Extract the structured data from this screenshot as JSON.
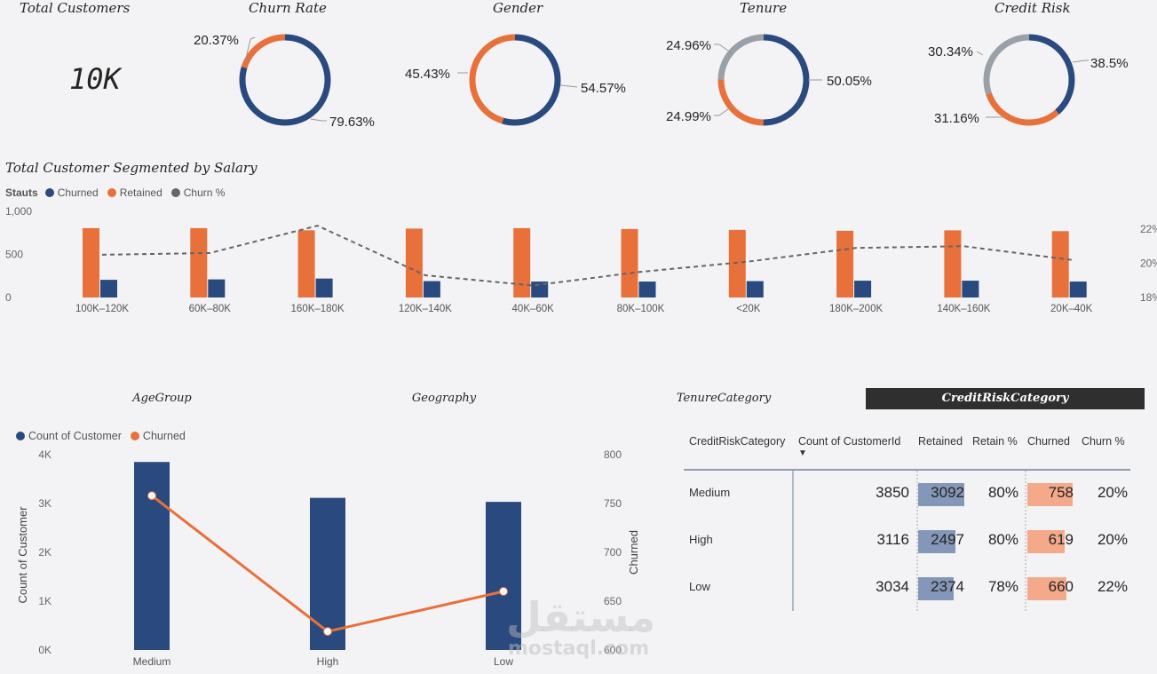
{
  "kpi": {
    "title": "Total Customers",
    "value": "10K"
  },
  "donuts": [
    {
      "title": "Churn Rate",
      "slices": [
        {
          "label": "79.63%",
          "value": 79.63,
          "color": "#2a4a7f"
        },
        {
          "label": "20.37%",
          "value": 20.37,
          "color": "#e8703a"
        }
      ]
    },
    {
      "title": "Gender",
      "slices": [
        {
          "label": "54.57%",
          "value": 54.57,
          "color": "#2a4a7f"
        },
        {
          "label": "45.43%",
          "value": 45.43,
          "color": "#e8703a"
        }
      ]
    },
    {
      "title": "Tenure",
      "slices": [
        {
          "label": "50.05%",
          "value": 50.05,
          "color": "#2a4a7f"
        },
        {
          "label": "24.99%",
          "value": 24.99,
          "color": "#e8703a"
        },
        {
          "label": "24.96%",
          "value": 24.96,
          "color": "#9aa0a8"
        }
      ]
    },
    {
      "title": "Credit Risk",
      "slices": [
        {
          "label": "38.5%",
          "value": 38.5,
          "color": "#2a4a7f"
        },
        {
          "label": "31.16%",
          "value": 31.16,
          "color": "#e8703a"
        },
        {
          "label": "30.34%",
          "value": 30.34,
          "color": "#9aa0a8"
        }
      ]
    }
  ],
  "salary_chart": {
    "title": "Total Customer Segmented by  Salary",
    "legend_title": "Stauts",
    "legend": [
      {
        "label": "Churned",
        "color": "#2a4a7f"
      },
      {
        "label": "Retained",
        "color": "#e8703a"
      },
      {
        "label": "Churn %",
        "color": "#666666"
      }
    ]
  },
  "age_chart": {
    "legend": [
      {
        "label": "Count of Customer",
        "color": "#2a4a7f"
      },
      {
        "label": "Churned",
        "color": "#e8703a"
      }
    ],
    "ylabel_left": "Count of Customer",
    "ylabel_right": "Churned"
  },
  "tabs": [
    {
      "label": "AgeGroup"
    },
    {
      "label": "Geography"
    },
    {
      "label": "TenureCategory"
    },
    {
      "label": "CreditRiskCategory"
    }
  ],
  "matrix": {
    "headers": [
      "CreditRiskCategory",
      "Count of CustomerId",
      "Retained",
      "Retain %",
      "Churned",
      "Churn %"
    ],
    "sort_indicator": "▼",
    "rows": [
      {
        "category": "Medium",
        "count": "3850",
        "retained": "3092",
        "retain_pct": "80%",
        "churned": "758",
        "churn_pct": "20%",
        "retained_frac": 0.8,
        "churned_frac": 0.78
      },
      {
        "category": "High",
        "count": "3116",
        "retained": "2497",
        "retain_pct": "80%",
        "churned": "619",
        "churn_pct": "20%",
        "retained_frac": 0.65,
        "churned_frac": 0.64
      },
      {
        "category": "Low",
        "count": "3034",
        "retained": "2374",
        "retain_pct": "78%",
        "churned": "660",
        "churn_pct": "22%",
        "retained_frac": 0.62,
        "churned_frac": 0.68
      }
    ]
  },
  "watermark": {
    "arabic": "مستقل",
    "latin": "mostaql.com"
  },
  "chart_data": [
    {
      "type": "bar",
      "title": "Total Customer Segmented by  Salary",
      "categories": [
        "100K–120K",
        "60K–80K",
        "160K–180K",
        "120K–140K",
        "40K–60K",
        "80K–100K",
        "<20K",
        "180K–200K",
        "140K–160K",
        "20K–40K"
      ],
      "series": [
        {
          "name": "Retained",
          "values": [
            805,
            805,
            780,
            800,
            805,
            795,
            785,
            775,
            780,
            770
          ]
        },
        {
          "name": "Churned",
          "values": [
            205,
            210,
            220,
            190,
            185,
            185,
            190,
            195,
            195,
            185
          ]
        },
        {
          "name": "Churn %",
          "values": [
            20.5,
            20.6,
            22.2,
            19.3,
            18.7,
            19.5,
            20.1,
            20.9,
            21.0,
            20.2
          ]
        }
      ],
      "y_ticks": [
        "0",
        "500",
        "1,000"
      ],
      "ylim": [
        0,
        1000
      ],
      "y2_ticks": [
        "18%",
        "20%",
        "22%"
      ],
      "y2lim": [
        18,
        22
      ],
      "legend_position": "top-left"
    },
    {
      "type": "bar",
      "categories": [
        "Medium",
        "High",
        "Low"
      ],
      "series": [
        {
          "name": "Count of Customer",
          "values": [
            3850,
            3116,
            3034
          ]
        },
        {
          "name": "Churned",
          "values": [
            758,
            619,
            660
          ]
        }
      ],
      "y_ticks": [
        "0K",
        "1K",
        "2K",
        "3K",
        "4K"
      ],
      "ylim": [
        0,
        4000
      ],
      "y2_ticks": [
        "600",
        "650",
        "700",
        "750",
        "800"
      ],
      "y2lim": [
        600,
        800
      ],
      "legend_position": "top-left"
    }
  ]
}
